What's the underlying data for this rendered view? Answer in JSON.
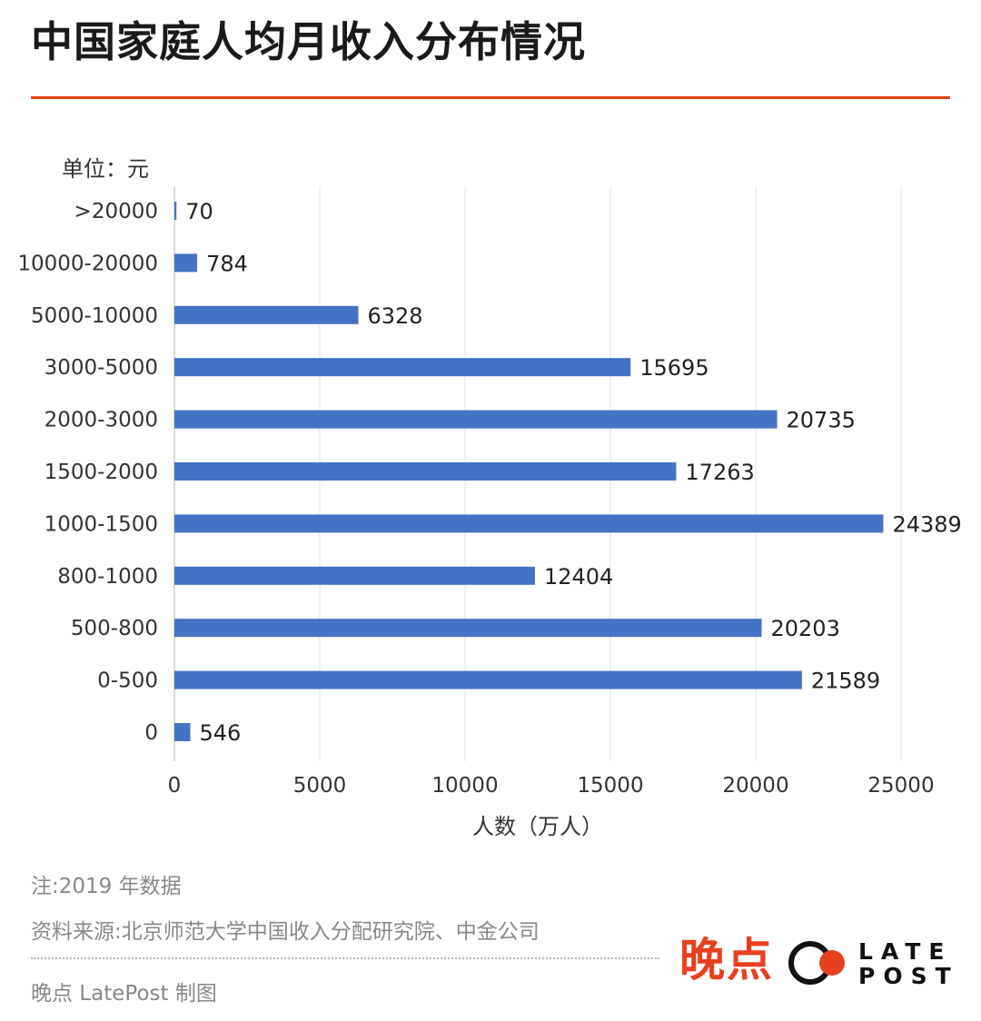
{
  "title": "中国家庭人均月收入分布情况",
  "colors": {
    "bar": "#4472C4",
    "accent": "#E8401C",
    "grid": "#e3e3e3",
    "axis": "#cccccc"
  },
  "chart_data": {
    "type": "bar",
    "orientation": "horizontal",
    "unit_label": "单位：元",
    "xlabel": "人数（万人）",
    "xlim": [
      0,
      25000
    ],
    "xticks": [
      "0",
      "5000",
      "10000",
      "15000",
      "20000",
      "25000"
    ],
    "grid": "vertical",
    "categories": [
      ">20000",
      "10000-20000",
      "5000-10000",
      "3000-5000",
      "2000-3000",
      "1500-2000",
      "1000-1500",
      "800-1000",
      "500-800",
      "0-500",
      "0"
    ],
    "values": [
      70,
      784,
      6328,
      15695,
      20735,
      17263,
      24389,
      12404,
      20203,
      21589,
      546
    ]
  },
  "notes": {
    "data_year": "注:2019 年数据",
    "source": "资料来源:北京师范大学中国收入分配研究院、中金公司",
    "credit": "晚点 LatePost 制图"
  },
  "logo": {
    "cn": "晚点",
    "en_top": "LATE",
    "en_bottom": "POST"
  }
}
